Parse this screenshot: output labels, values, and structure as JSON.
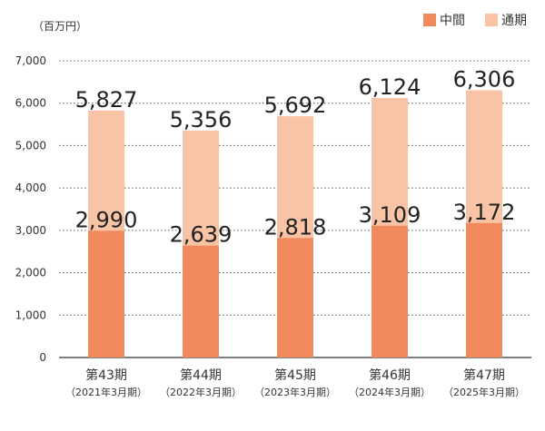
{
  "unit_label": "（百万円）",
  "legend": [
    {
      "label": "中間",
      "color": "#f08a5d"
    },
    {
      "label": "通期",
      "color": "#f9c4a6"
    }
  ],
  "chart_data": {
    "type": "bar",
    "stacked": false,
    "overlay": true,
    "categories": [
      "第43期",
      "第44期",
      "第45期",
      "第46期",
      "第47期"
    ],
    "category_sublabels": [
      "（2021年3月期）",
      "（2022年3月期）",
      "（2023年3月期）",
      "（2024年3月期）",
      "（2025年3月期）"
    ],
    "series": [
      {
        "name": "通期",
        "values": [
          5827,
          5356,
          5692,
          6124,
          6306
        ],
        "labels": [
          "5,827",
          "5,356",
          "5,692",
          "6,124",
          "6,306"
        ],
        "color": "#f9c4a6"
      },
      {
        "name": "中間",
        "values": [
          2990,
          2639,
          2818,
          3109,
          3172
        ],
        "labels": [
          "2,990",
          "2,639",
          "2,818",
          "3,109",
          "3,172"
        ],
        "color": "#f08a5d"
      }
    ],
    "ylim": [
      0,
      7000
    ],
    "yticks": [
      0,
      1000,
      2000,
      3000,
      4000,
      5000,
      6000,
      7000
    ],
    "ytick_labels": [
      "0",
      "1,000",
      "2,000",
      "3,000",
      "4,000",
      "5,000",
      "6,000",
      "7,000"
    ],
    "grid": true,
    "legend_position": "top-right"
  }
}
